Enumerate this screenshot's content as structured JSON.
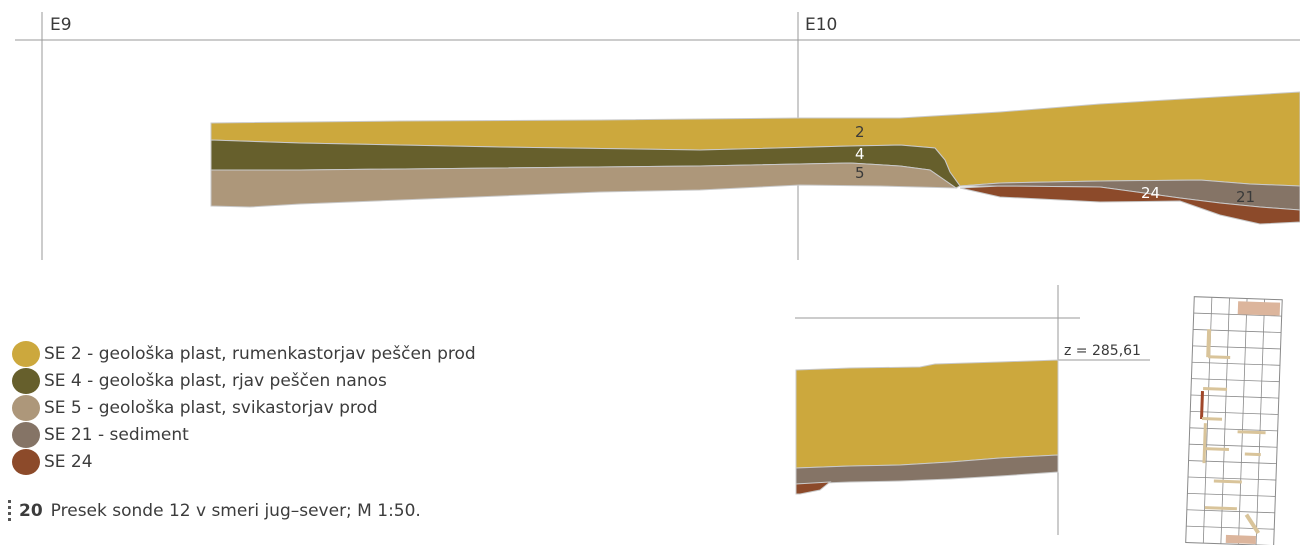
{
  "grid": {
    "left_label": "E9",
    "right_label": "E10"
  },
  "layer_labels": {
    "l2": "2",
    "l4": "4",
    "l5": "5",
    "l24": "24",
    "l21": "21"
  },
  "inset": {
    "elevation": "z = 285,61"
  },
  "legend": [
    {
      "label": "SE 2 - geološka plast, rumenkastorjav peščen prod",
      "color": "#cca83d"
    },
    {
      "label": "SE 4 - geološka plast, rjav peščen nanos",
      "color": "#665f2c"
    },
    {
      "label": "SE 5 - geološka plast, svikastorjav prod",
      "color": "#ad977a"
    },
    {
      "label": "SE 21 - sediment",
      "color": "#857466"
    },
    {
      "label": "SE 24",
      "color": "#8c4a2a"
    }
  ],
  "caption": {
    "number": "20",
    "text": "Presek sonde 12 v smeri jug–sever; M 1:50."
  },
  "colors": {
    "se2": "#cca83d",
    "se4": "#665f2c",
    "se5": "#ad977a",
    "se21": "#857466",
    "se24": "#8c4a2a",
    "grid": "#9a9a9a"
  }
}
